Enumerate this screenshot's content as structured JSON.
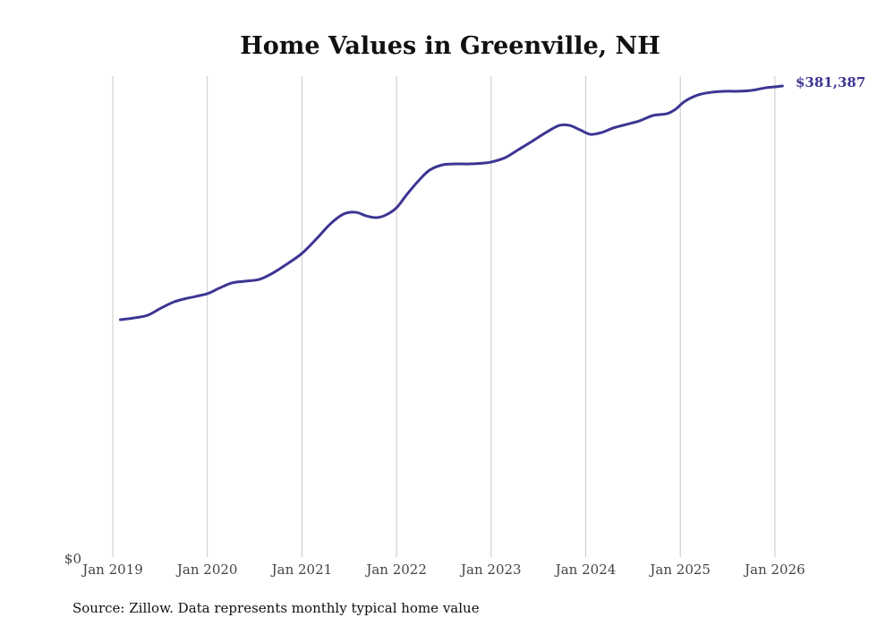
{
  "chart_data": {
    "type": "line",
    "title": "Home Values in Greenville, NH",
    "xlabel": "",
    "ylabel": "",
    "x_ticks": [
      2019,
      2020,
      2021,
      2022,
      2023,
      2024,
      2025,
      2026
    ],
    "x_tick_labels": [
      "Jan 2019",
      "Jan 2020",
      "Jan 2021",
      "Jan 2022",
      "Jan 2023",
      "Jan 2024",
      "Jan 2025",
      "Jan 2026"
    ],
    "y_tick_label": "$0",
    "xlim": [
      2019,
      2026.1
    ],
    "ylim": [
      0,
      381387
    ],
    "grid": "vertical",
    "end_label": "$381,387",
    "source": "Source: Zillow. Data represents monthly typical home value",
    "colors": {
      "line": "#3d3593",
      "grid": "#c8c8c8"
    },
    "series": [
      {
        "name": "Typical home value",
        "x": [
          2019.08,
          2019.23,
          2019.37,
          2019.51,
          2019.65,
          2019.79,
          2020.0,
          2020.12,
          2020.26,
          2020.4,
          2020.55,
          2020.69,
          2020.84,
          2021.0,
          2021.16,
          2021.3,
          2021.44,
          2021.57,
          2021.68,
          2021.79,
          2021.89,
          2022.0,
          2022.11,
          2022.24,
          2022.35,
          2022.49,
          2022.63,
          2022.77,
          2022.92,
          2023.0,
          2023.15,
          2023.29,
          2023.43,
          2023.58,
          2023.72,
          2023.83,
          2023.94,
          2024.05,
          2024.17,
          2024.29,
          2024.43,
          2024.57,
          2024.71,
          2024.86,
          2024.95,
          2025.05,
          2025.19,
          2025.33,
          2025.47,
          2025.61,
          2025.75,
          2025.9,
          2026.0,
          2026.08
        ],
        "values": [
          192500,
          194000,
          196100,
          201900,
          207000,
          209900,
          213500,
          217800,
          222200,
          223600,
          225100,
          230100,
          237400,
          246100,
          258400,
          269900,
          277900,
          279300,
          276400,
          275000,
          277200,
          283000,
          293800,
          305400,
          313400,
          317700,
          318400,
          318400,
          319100,
          319900,
          323500,
          330000,
          336500,
          343800,
          349500,
          349500,
          345900,
          342300,
          343800,
          347400,
          350300,
          353200,
          357500,
          359000,
          362600,
          369100,
          374200,
          376300,
          377100,
          377100,
          377800,
          379900,
          380700,
          381387
        ]
      }
    ]
  }
}
